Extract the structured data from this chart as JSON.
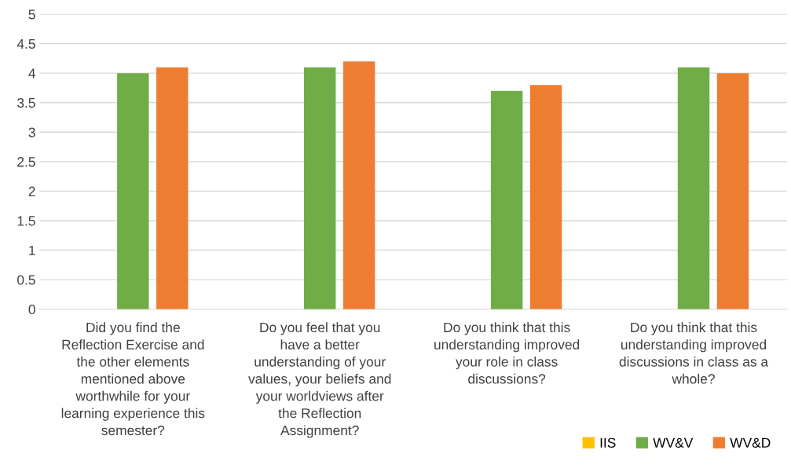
{
  "chart_data": {
    "type": "bar",
    "categories": [
      "Did you find the\nReflection Exercise and\nthe other elements\nmentioned above\nworthwhile for your\nlearning experience this\nsemester?",
      "Do you feel that you\nhave a better\nunderstanding of your\nvalues, your beliefs and\nyour worldviews after\nthe Reflection\nAssignment?",
      "Do you think that this\nunderstanding improved\nyour role in class\ndiscussions?",
      "Do you think that this\nunderstanding improved\ndiscussions in class as a\nwhole?"
    ],
    "series": [
      {
        "name": "IIS",
        "color": "#ffc000",
        "values": [
          null,
          null,
          null,
          null
        ]
      },
      {
        "name": "WV&V",
        "color": "#70ad47",
        "values": [
          4.0,
          4.1,
          3.7,
          4.1
        ]
      },
      {
        "name": "WV&D",
        "color": "#ed7d31",
        "values": [
          4.1,
          4.2,
          3.8,
          4.0
        ]
      }
    ],
    "ylim": [
      0,
      5
    ],
    "yticks": [
      0,
      0.5,
      1,
      1.5,
      2,
      2.5,
      3,
      3.5,
      4,
      4.5,
      5
    ],
    "grid": "y",
    "legend": "bottom right"
  }
}
